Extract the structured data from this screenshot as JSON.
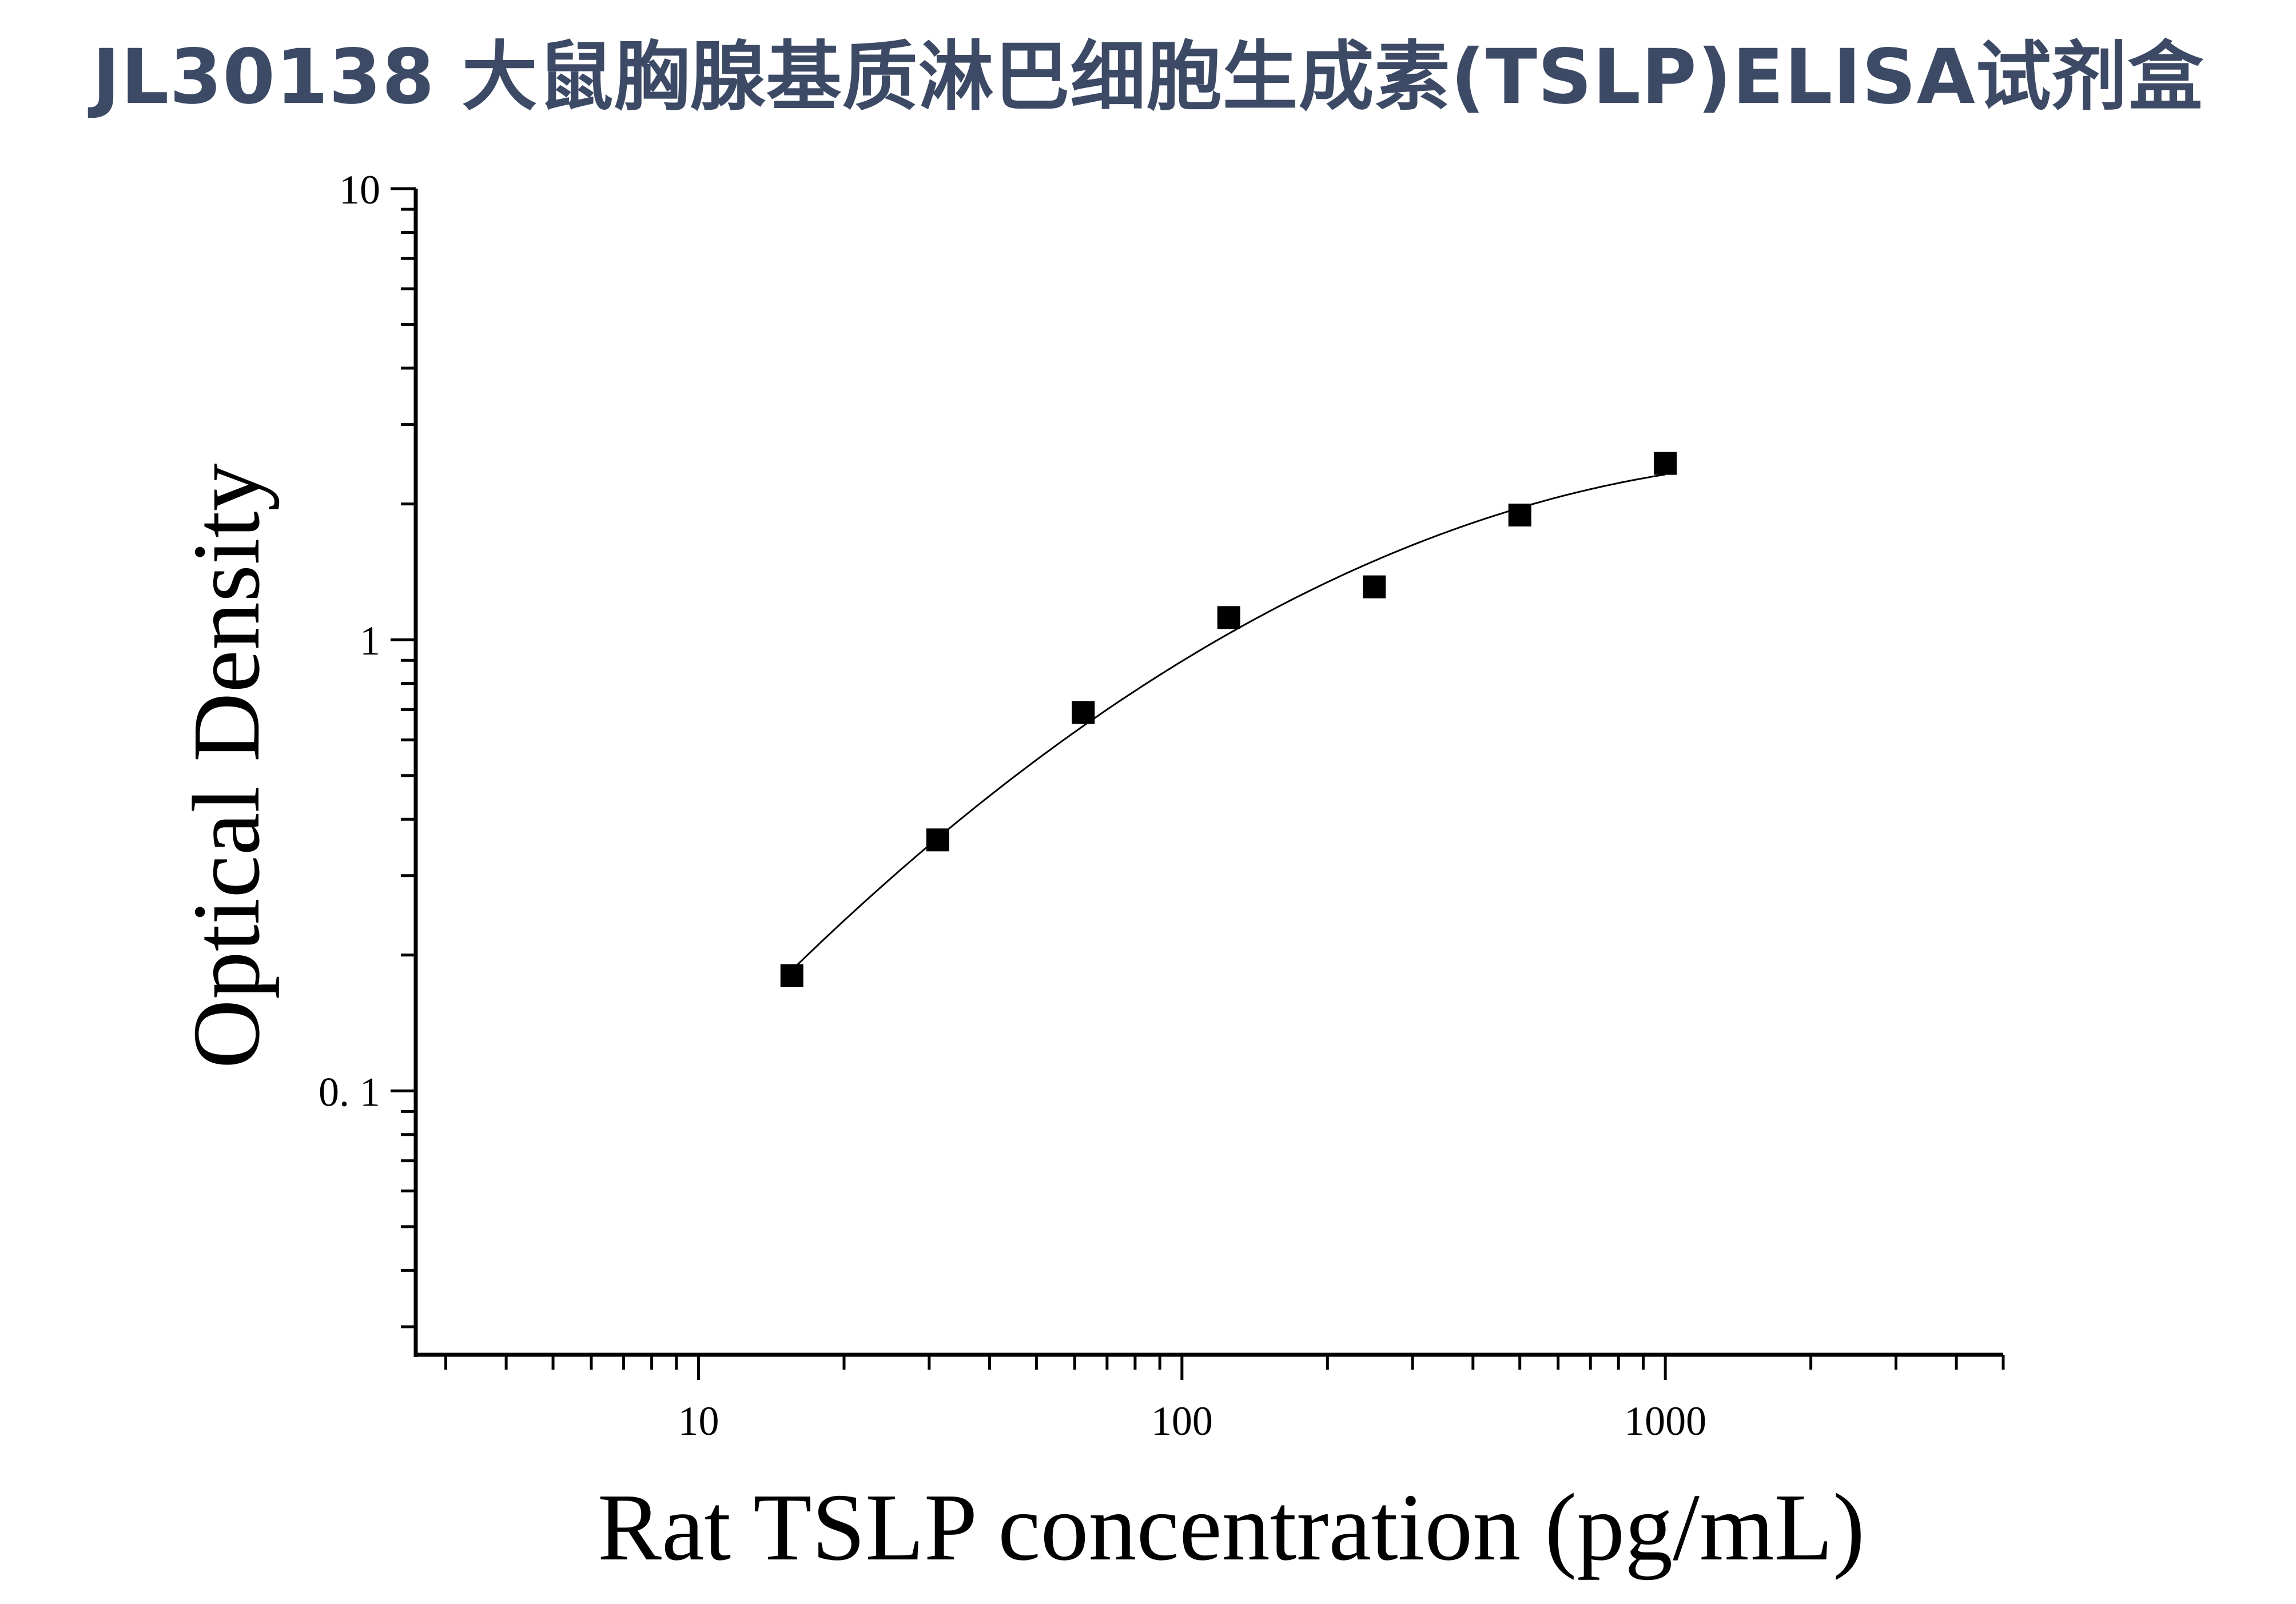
{
  "chart_data": {
    "type": "scatter",
    "title": "JL30138 大鼠胸腺基质淋巴细胞生成素(TSLP)ELISA试剂盒",
    "xlabel": "Rat TSLP concentration (pg/mL)",
    "ylabel": "Optical Density",
    "x_scale": "log",
    "y_scale": "log",
    "xlim": [
      2.6,
      5000
    ],
    "ylim": [
      0.026,
      10
    ],
    "x_ticks": [
      {
        "value": 10,
        "label": "10"
      },
      {
        "value": 100,
        "label": "100"
      },
      {
        "value": 1000,
        "label": "1000"
      }
    ],
    "y_ticks": [
      {
        "value": 0.1,
        "label": "0. 1"
      },
      {
        "value": 1,
        "label": "1"
      },
      {
        "value": 10,
        "label": "10"
      }
    ],
    "grid": false,
    "series": [
      {
        "marker": "square",
        "x": [
          15.6,
          31.25,
          62.5,
          125,
          250,
          500,
          1000
        ],
        "y": [
          0.18,
          0.36,
          0.69,
          1.12,
          1.31,
          1.89,
          2.46
        ]
      }
    ],
    "fit_curve": true,
    "colors": {
      "title": "#3d4a66",
      "marks": "#000000",
      "axis": "#000000"
    }
  }
}
